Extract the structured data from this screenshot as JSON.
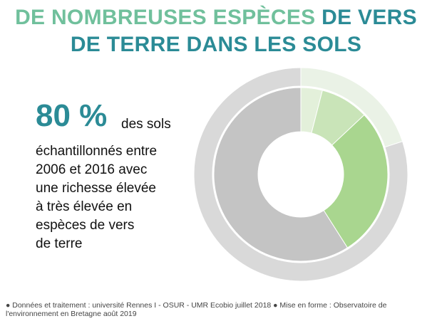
{
  "title_part1": "DE NOMBREUSES ESPÈCES",
  "title_part2": "DE VERS",
  "title_line2": "DE TERRE DANS LES SOLS",
  "highlight": "80 %",
  "body_lines": [
    "des sols",
    "échantillonnés entre",
    "2006 et 2016 avec",
    "une richesse élevée",
    "à très élevée en",
    "espèces de vers",
    "de terre"
  ],
  "footnote": "● Données et traitement : université Rennes I - OSUR - UMR Ecobio juillet 2018 ● Mise en forme : Observatoire de l'environnement en Bretagne août 2019",
  "chart_data": {
    "type": "donut",
    "rings": [
      {
        "values": [
          20,
          80
        ],
        "colors": [
          "#eaf2e6",
          "#d9d9d9"
        ]
      },
      {
        "values": [
          4,
          9,
          28,
          59
        ],
        "colors": [
          "#e3f0da",
          "#c9e4b8",
          "#a9d68f",
          "#c4c4c4"
        ]
      }
    ]
  }
}
